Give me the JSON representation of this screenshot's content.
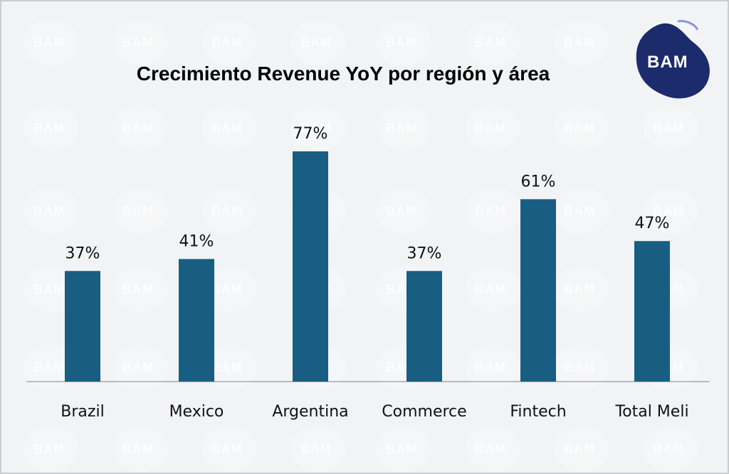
{
  "watermark": "BAM",
  "logo": {
    "text": "BAM",
    "color": "#1c2b6b"
  },
  "colors": {
    "bar": "#175e82",
    "background": "#f2f3f5",
    "axis": "#a6a9ad"
  },
  "chart_data": {
    "type": "bar",
    "title": "Crecimiento Revenue YoY por región y área",
    "categories": [
      "Brazil",
      "Mexico",
      "Argentina",
      "Commerce",
      "Fintech",
      "Total Meli"
    ],
    "values": [
      37,
      41,
      77,
      37,
      61,
      47
    ],
    "value_labels": [
      "37%",
      "41%",
      "77%",
      "37%",
      "61%",
      "47%"
    ],
    "unit": "%",
    "xlabel": "",
    "ylabel": "",
    "ylim": [
      0,
      80
    ],
    "grid": false,
    "legend": "none"
  }
}
